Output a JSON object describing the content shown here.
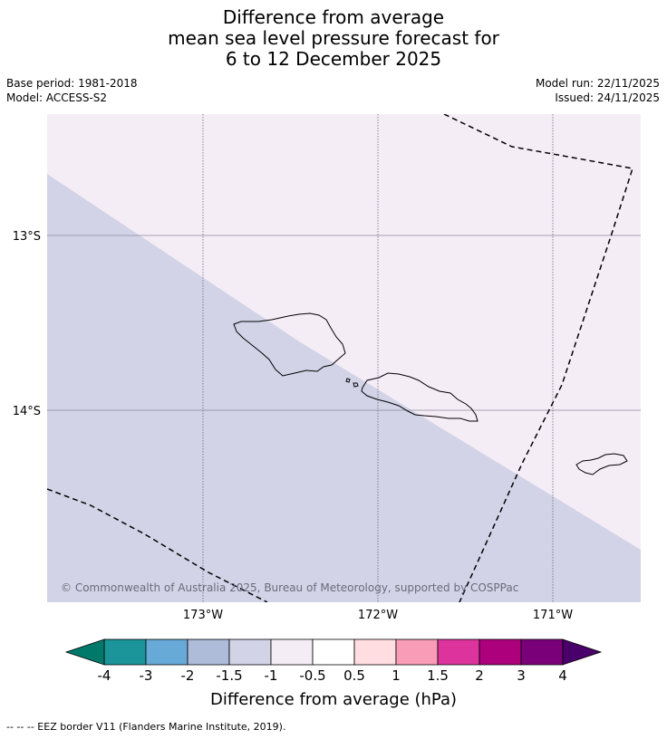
{
  "title": {
    "line1": "Difference from average",
    "line2": "mean sea level pressure forecast for",
    "line3": "6 to 12 December 2025"
  },
  "meta": {
    "base_period": "Base period: 1981-2018",
    "model": "Model: ACCESS-S2",
    "model_run": "Model run: 22/11/2025",
    "issued": "Issued: 24/11/2025"
  },
  "map": {
    "lat_labels": [
      "13°S",
      "14°S"
    ],
    "lon_labels": [
      "173°W",
      "172°W",
      "171°W"
    ],
    "copyright": "© Commonwealth of Australia 2025, Bureau of Meteorology, supported by COSPPac",
    "regions": [
      {
        "name": "-1 to -0.5 hPa",
        "color": "#f5edf6"
      },
      {
        "name": "-1.5 to -1 hPa",
        "color": "#d2d3e7"
      }
    ]
  },
  "colorbar": {
    "label": "Difference from average (hPa)",
    "ticks": [
      "-4",
      "-3",
      "-2",
      "-1.5",
      "-1",
      "-0.5",
      "0.5",
      "1",
      "1.5",
      "2",
      "3",
      "4"
    ],
    "low_extend_color": "#00796b",
    "high_extend_color": "#4a006a",
    "colors": [
      "#1b9599",
      "#67aad7",
      "#aebbd9",
      "#d2d3e7",
      "#f5edf6",
      "#ffffff",
      "#ffdde0",
      "#f99cb8",
      "#dc349c",
      "#ac007c",
      "#7a0079"
    ]
  },
  "footer": "--  --  -- EEZ border V11 (Flanders Marine Institute, 2019)."
}
